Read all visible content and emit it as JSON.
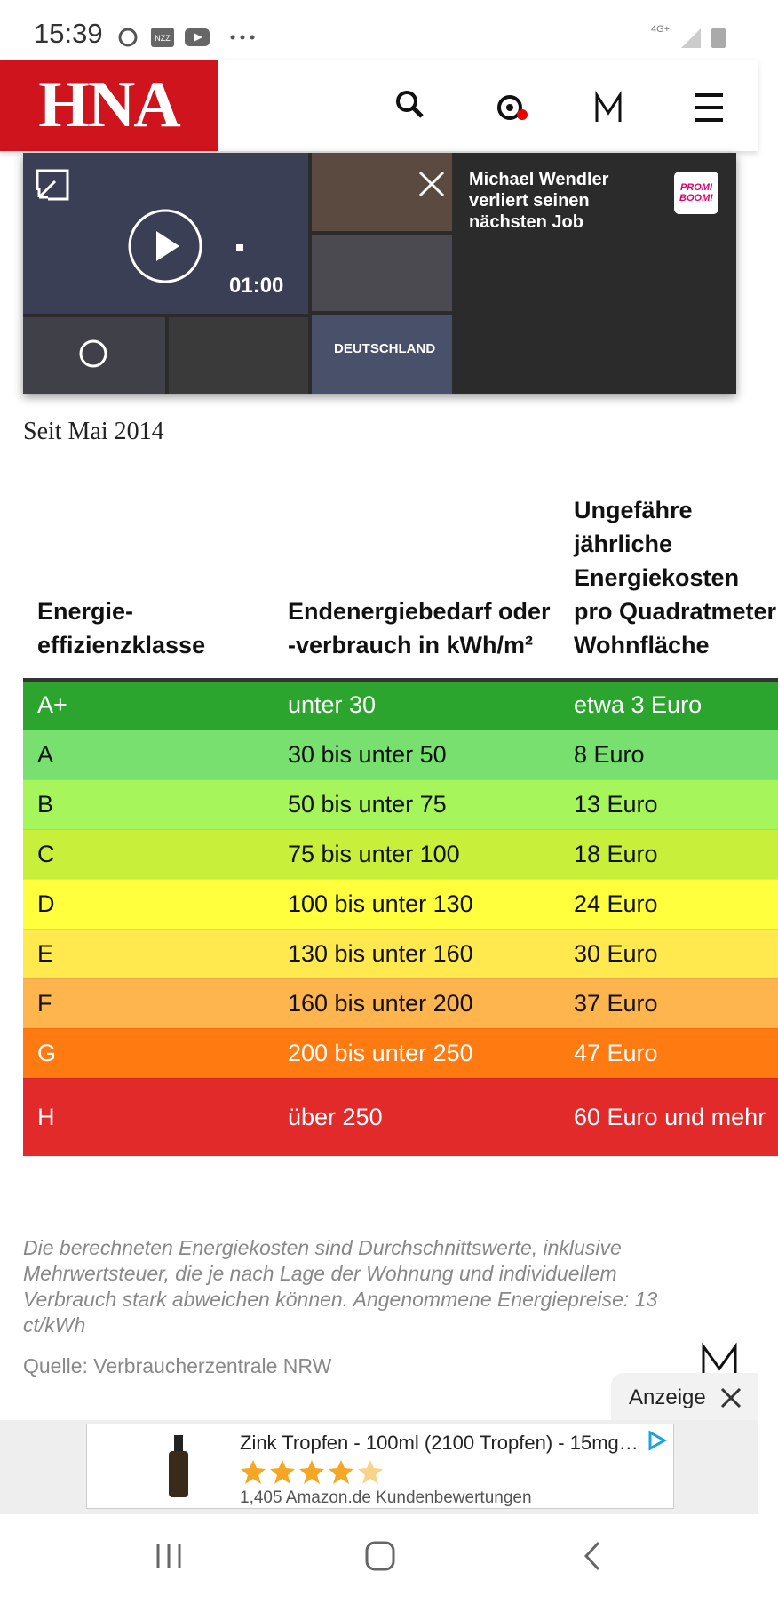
{
  "status_bar": {
    "time": "15:39",
    "nzz": "NZZ",
    "network": "4G+"
  },
  "header": {
    "logo": "HNA"
  },
  "video": {
    "duration": "01:00",
    "thumb_label": "DEUTSCHLAND",
    "headline": "Michael Wendler verliert seinen nächsten Job",
    "badge": "PROMI BOOM!"
  },
  "article": {
    "subtitle": "Seit Mai 2014"
  },
  "table": {
    "headers": [
      "Energie-effizienzklasse",
      "Endenergiebedarf oder -verbrauch in kWh/m²",
      "Ungefähre jährliche Energiekosten pro Quadratmeter Wohnfläche"
    ],
    "rows": [
      [
        "A+",
        "unter 30",
        "etwa 3 Euro"
      ],
      [
        "A",
        "30 bis unter 50",
        "8 Euro"
      ],
      [
        "B",
        "50 bis unter 75",
        "13 Euro"
      ],
      [
        "C",
        "75 bis unter 100",
        "18 Euro"
      ],
      [
        "D",
        "100 bis unter 130",
        "24 Euro"
      ],
      [
        "E",
        "130 bis unter 160",
        "30 Euro"
      ],
      [
        "F",
        "160 bis unter 200",
        "37 Euro"
      ],
      [
        "G",
        "200 bis unter 250",
        "47 Euro"
      ],
      [
        "H",
        "über 250",
        "60 Euro und mehr"
      ]
    ]
  },
  "footnote": "Die berechneten Energiekosten sind Durchschnittswerte, inklusive Mehrwertsteuer, die je nach Lage der Wohnung und individuellem Verbrauch stark abweichen können. Angenommene Energiepreise: 13 ct/kWh",
  "source": "Quelle: Verbraucherzentrale NRW",
  "ad": {
    "tab": "Anzeige",
    "title": "Zink Tropfen - 100ml (2100 Tropfen) - 15mg…",
    "reviews": "1,405 Amazon.de Kundenbewertungen"
  }
}
